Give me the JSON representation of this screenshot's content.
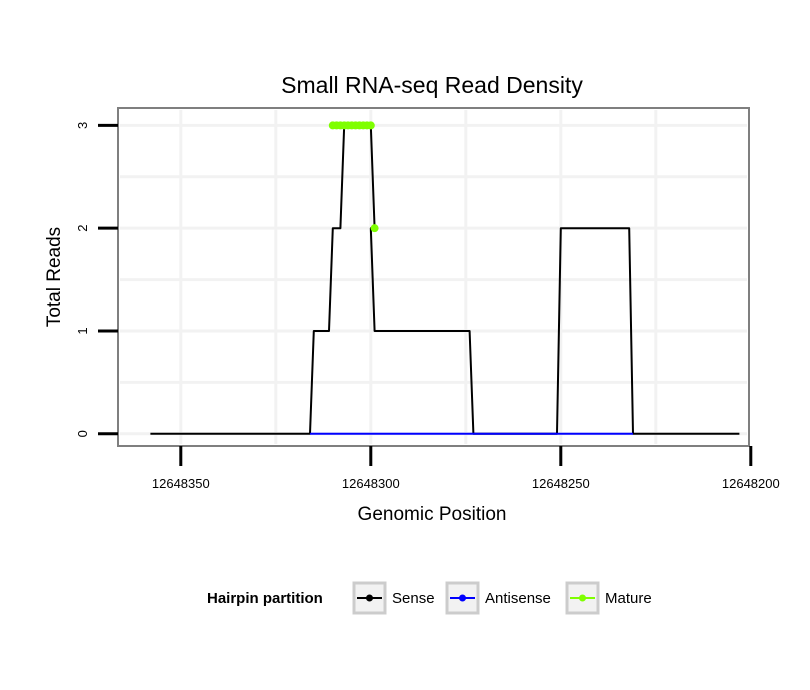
{
  "chart_data": {
    "type": "line",
    "title": "Small RNA-seq Read Density",
    "xlabel": "Genomic Position",
    "ylabel": "Total Reads",
    "x_reversed": true,
    "xlim": [
      12648366,
      12648201
    ],
    "ylim": [
      -0.1,
      3.15
    ],
    "x_ticks": [
      12648350,
      12648300,
      12648250,
      12648200
    ],
    "x_tick_labels": [
      "12648350",
      "12648300",
      "12648250",
      "12648200"
    ],
    "y_ticks": [
      0,
      1,
      2,
      3
    ],
    "y_tick_labels": [
      "0",
      "1",
      "2",
      "3"
    ],
    "grid": true,
    "legend": {
      "title": "Hairpin partition",
      "placement": "bottom",
      "entries": [
        {
          "label": "Sense",
          "color": "#000000"
        },
        {
          "label": "Antisense",
          "color": "#0000ff"
        },
        {
          "label": "Mature",
          "color": "#7fff00"
        }
      ]
    },
    "series": [
      {
        "name": "Sense",
        "color": "#000000",
        "x": [
          12648358,
          12648316,
          12648315,
          12648311,
          12648310,
          12648308,
          12648307,
          12648301,
          12648300,
          12648299,
          12648300,
          12648299,
          12648298,
          12648274,
          12648273,
          12648251,
          12648250,
          12648232,
          12648231,
          12648203
        ],
        "y": [
          0,
          0,
          1,
          1,
          2,
          2,
          3,
          3,
          3,
          2,
          2,
          1,
          1,
          1,
          0,
          0,
          2,
          2,
          0,
          0
        ]
      },
      {
        "name": "Antisense",
        "color": "#0000ff",
        "x": [
          12648316,
          12648231
        ],
        "y": [
          0,
          0
        ]
      },
      {
        "name": "Mature",
        "color": "#7fff00",
        "x": [
          12648310,
          12648309,
          12648308,
          12648307,
          12648306,
          12648305,
          12648304,
          12648303,
          12648302,
          12648301,
          12648300,
          12648299
        ],
        "y": [
          3,
          3,
          3,
          3,
          3,
          3,
          3,
          3,
          3,
          3,
          3,
          2
        ]
      }
    ]
  }
}
